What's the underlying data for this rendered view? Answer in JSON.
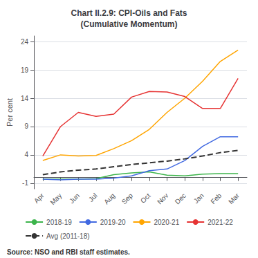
{
  "chart_data": {
    "type": "line",
    "title": "Chart II.2.9: CPI-Oils and Fats\n(Cumulative Momentum)",
    "y_label": "Per cent",
    "categories": [
      "Apr",
      "May",
      "Jun",
      "Jul",
      "Aug",
      "Sep",
      "Oct",
      "Nov",
      "Dec",
      "Jan",
      "Feb",
      "Mar"
    ],
    "series": [
      {
        "name": "2018-19",
        "color": "#3cb44b",
        "line_style": "solid",
        "values": [
          -0.3,
          -0.3,
          -0.3,
          -0.2,
          0.5,
          0.8,
          1.0,
          0.4,
          0.3,
          0.6,
          0.7,
          0.7
        ]
      },
      {
        "name": "2019-20",
        "color": "#4169e1",
        "line_style": "solid",
        "values": [
          -0.3,
          -0.4,
          -0.3,
          -0.3,
          -0.1,
          0.3,
          1.2,
          1.5,
          3.0,
          5.5,
          7.2,
          7.2
        ]
      },
      {
        "name": "2020-21",
        "color": "#ffa500",
        "line_style": "solid",
        "values": [
          3.0,
          4.0,
          3.8,
          3.9,
          5.1,
          6.5,
          8.5,
          11.5,
          14.0,
          17.0,
          20.5,
          22.5
        ]
      },
      {
        "name": "2021-22",
        "color": "#e63333",
        "line_style": "solid",
        "values": [
          3.8,
          9.0,
          11.5,
          10.8,
          11.2,
          14.2,
          15.2,
          15.1,
          14.3,
          12.2,
          12.2,
          17.5
        ]
      },
      {
        "name": "Avg (2011-18)",
        "color": "#333333",
        "line_style": "dashed",
        "values": [
          0.5,
          1.0,
          1.3,
          1.5,
          1.9,
          2.3,
          2.6,
          2.9,
          3.3,
          3.8,
          4.4,
          4.8
        ]
      }
    ],
    "ylim": [
      -2,
      25
    ],
    "yticks": [
      -1,
      4,
      9,
      14,
      19,
      24
    ],
    "grid": true,
    "legend": "bottom",
    "annotations": [
      "Source: NSO and RBI staff estimates."
    ]
  }
}
